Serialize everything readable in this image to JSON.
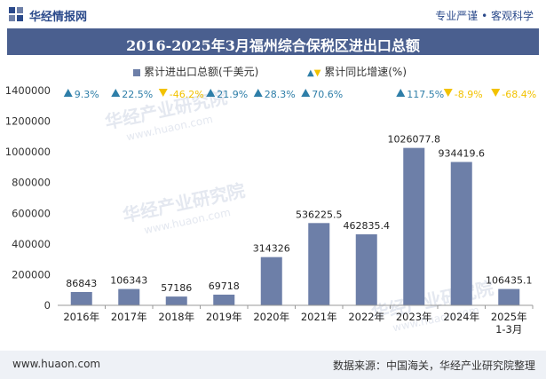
{
  "header": {
    "brand": "华经情报网",
    "right_text": "专业严谨 • 客观科学"
  },
  "chart_data": {
    "type": "bar",
    "title": "2016-2025年3月福州综合保税区进出口总额",
    "categories": [
      "2016年",
      "2017年",
      "2018年",
      "2019年",
      "2020年",
      "2021年",
      "2022年",
      "2023年",
      "2024年",
      "2025年 1-3月"
    ],
    "category_lines": [
      [
        "2016年"
      ],
      [
        "2017年"
      ],
      [
        "2018年"
      ],
      [
        "2019年"
      ],
      [
        "2020年"
      ],
      [
        "2021年"
      ],
      [
        "2022年"
      ],
      [
        "2023年"
      ],
      [
        "2024年"
      ],
      [
        "2025年",
        "1-3月"
      ]
    ],
    "values": [
      86843,
      106343,
      57186,
      69718,
      314326,
      536225.5,
      462835.4,
      1026077.8,
      934419.6,
      106435.1
    ],
    "value_labels": [
      "86843",
      "106343",
      "57186",
      "69718",
      "314326",
      "536225.5",
      "462835.4",
      "1026077.8",
      "934419.6",
      "106435.1"
    ],
    "growth_labels": [
      "9.3%",
      "22.5%",
      "-46.2%",
      "21.9%",
      "28.3%",
      "70.6%",
      "",
      "117.5%",
      "-8.9%",
      "-68.4%"
    ],
    "growth_direction": [
      "up",
      "up",
      "down",
      "up",
      "up",
      "up",
      "",
      "up",
      "down",
      "down"
    ],
    "ylim": [
      0,
      1400000
    ],
    "yticks": [
      0,
      200000,
      400000,
      600000,
      800000,
      1000000,
      1200000,
      1400000
    ],
    "ytick_labels": [
      "0",
      "200000",
      "400000",
      "600000",
      "800000",
      "1000000",
      "1200000",
      "1400000"
    ],
    "legend": {
      "bar_label": "累计进出口总额(千美元)",
      "growth_label": "累计同比增速(%)"
    },
    "colors": {
      "bar": "#6d7fa8",
      "up": "#2e7ea8",
      "down": "#f2c200",
      "title_bg": "#4a5f8f"
    }
  },
  "watermarks": [
    "华经产业研究院",
    "www.huaon.com"
  ],
  "footer": {
    "website": "www.huaon.com",
    "source": "数据来源：中国海关，华经产业研究院整理"
  }
}
